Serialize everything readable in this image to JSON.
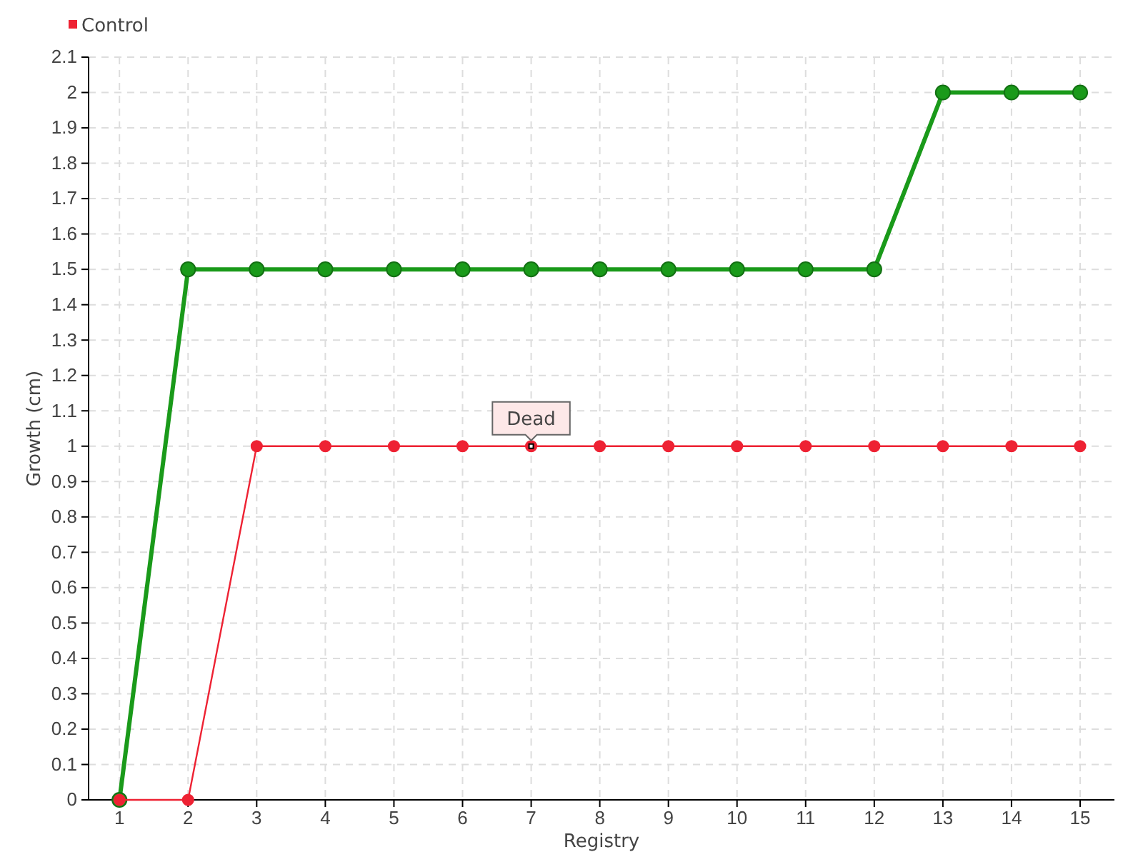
{
  "chart_data": {
    "type": "line",
    "xlabel": "Registry",
    "ylabel": "Growth (cm)",
    "x": [
      1,
      2,
      3,
      4,
      5,
      6,
      7,
      8,
      9,
      10,
      11,
      12,
      13,
      14,
      15
    ],
    "series": [
      {
        "color": "#1a9a1a",
        "values": [
          0,
          1.5,
          1.5,
          1.5,
          1.5,
          1.5,
          1.5,
          1.5,
          1.5,
          1.5,
          1.5,
          1.5,
          2,
          2,
          2
        ]
      },
      {
        "name": "Control",
        "color": "#ee2233",
        "values": [
          0,
          0,
          1,
          1,
          1,
          1,
          1,
          1,
          1,
          1,
          1,
          1,
          1,
          1,
          1
        ]
      }
    ],
    "xlim": [
      0.55,
      15.5
    ],
    "xticks": [
      1,
      2,
      3,
      4,
      5,
      6,
      7,
      8,
      9,
      10,
      11,
      12,
      13,
      14,
      15
    ],
    "ylim": [
      0,
      2.1
    ],
    "yticks": [
      0,
      0.1,
      0.2,
      0.3,
      0.4,
      0.5,
      0.6,
      0.7,
      0.8,
      0.9,
      1,
      1.1,
      1.2,
      1.3,
      1.4,
      1.5,
      1.6,
      1.7,
      1.8,
      1.9,
      2,
      2.1
    ],
    "annotations": [
      {
        "text": "Dead",
        "x": 7,
        "y": 1
      }
    ],
    "grid": true,
    "legend": "top left",
    "marker": "circle",
    "line_style": "solid"
  }
}
